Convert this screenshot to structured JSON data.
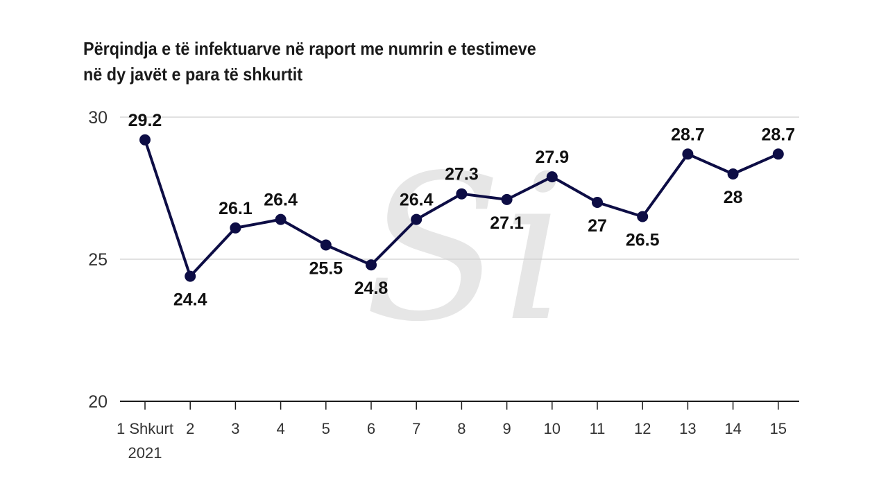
{
  "title_lines": [
    "Përqindja e të infektuarve në raport me numrin e testimeve",
    "në dy javët e para të shkurtit"
  ],
  "watermark_text": "Si",
  "chart_data": {
    "type": "line",
    "title": "Përqindja e të infektuarve në raport me numrin e testimeve në dy javët e para të shkurtit",
    "categories": [
      "1 Shkurt\n2021",
      "2",
      "3",
      "4",
      "5",
      "6",
      "7",
      "8",
      "9",
      "10",
      "11",
      "12",
      "13",
      "14",
      "15"
    ],
    "values": [
      29.2,
      24.4,
      26.1,
      26.4,
      25.5,
      24.8,
      26.4,
      27.3,
      27.1,
      27.9,
      27,
      26.5,
      28.7,
      28,
      28.7
    ],
    "labels": [
      "29.2",
      "24.4",
      "26.1",
      "26.4",
      "25.5",
      "24.8",
      "26.4",
      "27.3",
      "27.1",
      "27.9",
      "27",
      "26.5",
      "28.7",
      "28",
      "28.7"
    ],
    "label_positions": [
      "above",
      "below",
      "above",
      "above",
      "below",
      "below",
      "above",
      "above",
      "below",
      "above",
      "below",
      "below",
      "above",
      "below",
      "above"
    ],
    "ylim": [
      20,
      30
    ],
    "yticks": [
      20,
      25,
      30
    ],
    "grid": true,
    "legend": "none",
    "colors": {
      "line": "#0d0d45",
      "grid": "#cfcfcf",
      "axis": "#1a1a1a",
      "text": "#111111",
      "watermark": "#e6e6e6"
    }
  }
}
